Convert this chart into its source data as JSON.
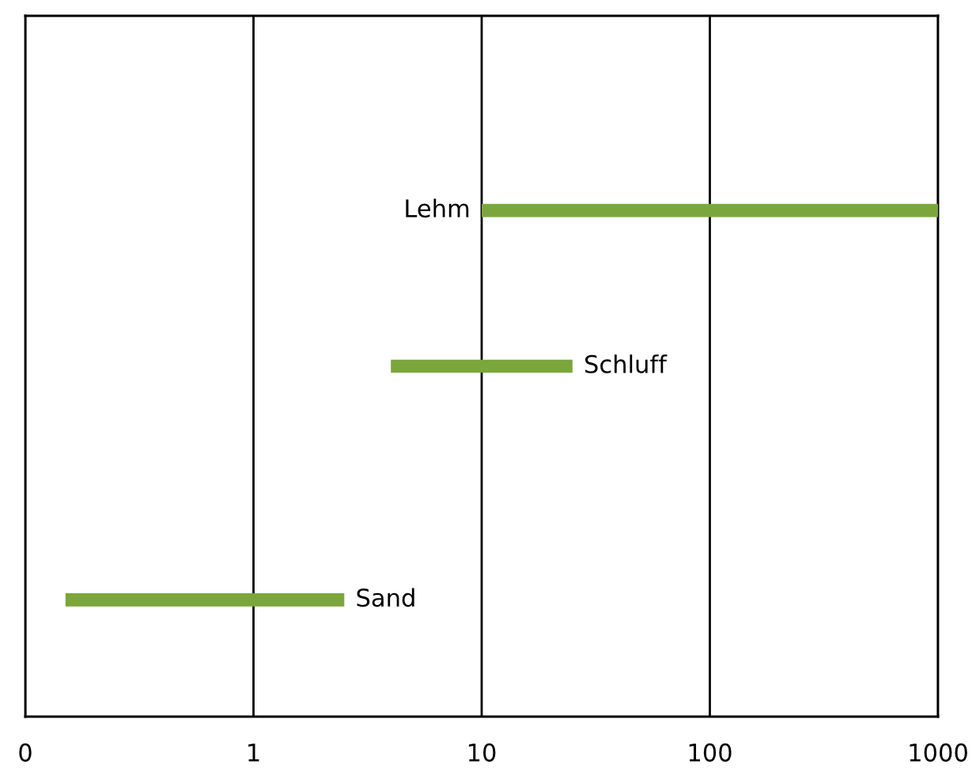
{
  "chart_data": {
    "type": "bar",
    "orientation": "horizontal",
    "log": "x",
    "categories": [
      null,
      null,
      "Lehm",
      null,
      "Schluff",
      null,
      null,
      "Sand",
      null
    ],
    "base": [
      null,
      null,
      10,
      null,
      4,
      null,
      null,
      0.15,
      null
    ],
    "values": [
      null,
      null,
      990,
      null,
      21,
      null,
      null,
      2.35,
      null
    ],
    "color": "#7ba63c",
    "xlim": [
      0.1,
      1000
    ],
    "xticks": [
      {
        "value": 0.1,
        "label": "0"
      },
      1,
      10,
      100,
      1000
    ],
    "grid": "x",
    "tick_labels": "x"
  }
}
